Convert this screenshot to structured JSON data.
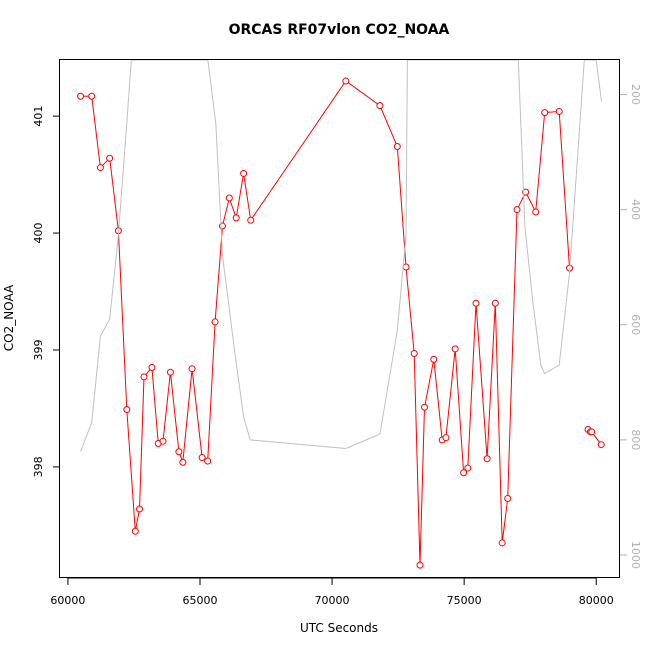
{
  "chart_data": {
    "type": "line",
    "title": "ORCAS RF07vlon CO2_NOAA",
    "xlabel": "UTC Seconds",
    "ylabel": "CO2_NOAA",
    "xlim": [
      59700,
      80900
    ],
    "ylim": [
      397.05,
      401.48
    ],
    "right_axis": {
      "reversed": true,
      "lim": [
        1040,
        140
      ],
      "ticks": [
        200,
        400,
        600,
        800,
        1000
      ]
    },
    "x_ticks": [
      60000,
      65000,
      70000,
      75000,
      80000
    ],
    "y_ticks": [
      398,
      399,
      400,
      401
    ],
    "grid": false,
    "series": [
      {
        "color": "#ff0000",
        "marker": "circle-open",
        "x": [
          60480,
          60900,
          61230,
          61580,
          61910,
          62230,
          62550,
          62710,
          62880,
          63180,
          63420,
          63600,
          63880,
          64200,
          64350,
          64700,
          65080,
          65290,
          65570,
          65850,
          66110,
          66370,
          66650,
          66920,
          70520,
          71810,
          72470,
          72800,
          73110,
          73330,
          73500,
          73850,
          74170,
          74310,
          74660,
          74980,
          75140,
          75450,
          75870,
          76180,
          76440,
          76650,
          77000,
          77330,
          77710,
          78050,
          78600,
          78990,
          79690,
          79780,
          79830,
          80190
        ],
        "y": [
          401.17,
          401.17,
          400.56,
          400.64,
          400.02,
          398.49,
          397.45,
          397.64,
          398.77,
          398.85,
          398.2,
          398.22,
          398.81,
          398.13,
          398.04,
          398.84,
          398.08,
          398.05,
          399.24,
          400.06,
          400.3,
          400.13,
          400.51,
          400.11,
          401.3,
          401.09,
          400.74,
          399.71,
          398.97,
          397.16,
          398.51,
          398.92,
          398.23,
          398.25,
          399.01,
          397.95,
          397.99,
          399.4,
          398.07,
          399.4,
          397.35,
          397.73,
          400.2,
          400.35,
          400.18,
          401.03,
          401.04,
          399.7,
          398.32,
          398.3,
          398.3,
          398.19
        ],
        "segments": [
          [
            0,
            1
          ],
          [
            1,
            47
          ],
          [
            48,
            49
          ],
          [
            49,
            51
          ]
        ]
      },
      {
        "color": "#c0c0c0",
        "marker": "none",
        "axis": "right",
        "x": [
          60480,
          60900,
          61230,
          61580,
          61900,
          62230,
          62400,
          65300,
          65600,
          65850,
          66350,
          66650,
          66900,
          70520,
          71810,
          72470,
          72800,
          72850,
          73100,
          74600,
          77050,
          77300,
          77600,
          77900,
          78050,
          78600,
          78990,
          79550,
          80000,
          80200
        ],
        "y": [
          820,
          770,
          620,
          590,
          450,
          250,
          140,
          140,
          250,
          480,
          660,
          760,
          800,
          815,
          790,
          610,
          445,
          140,
          140,
          140,
          140,
          430,
          560,
          670,
          685,
          670,
          510,
          140,
          140,
          212
        ]
      }
    ]
  }
}
